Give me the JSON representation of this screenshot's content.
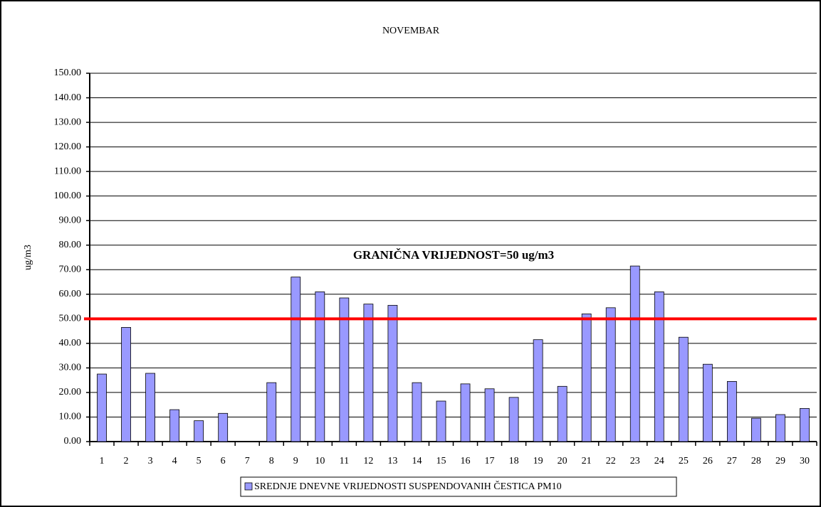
{
  "chart_data": {
    "type": "bar",
    "title": "NOVEMBAR",
    "y_label": "ug/m3",
    "categories": [
      "1",
      "2",
      "3",
      "4",
      "5",
      "6",
      "7",
      "8",
      "9",
      "10",
      "11",
      "12",
      "13",
      "14",
      "15",
      "16",
      "17",
      "18",
      "19",
      "20",
      "21",
      "22",
      "23",
      "24",
      "25",
      "26",
      "27",
      "28",
      "29",
      "30"
    ],
    "series": [
      {
        "name": "SREDNJE DNEVNE VRIJEDNOSTI SUSPENDOVANIH ČESTICA PM10",
        "color": "#9999ff",
        "values": [
          27.5,
          46.5,
          27.8,
          13,
          8.5,
          11.5,
          null,
          24,
          67,
          61,
          58.5,
          56,
          55.5,
          24,
          16.5,
          23.5,
          21.5,
          18,
          41.5,
          22.5,
          52,
          54.5,
          71.5,
          61,
          42.5,
          31.5,
          24.5,
          9.5,
          11,
          13.5
        ]
      }
    ],
    "threshold": 50,
    "threshold_color": "#ff0000",
    "threshold_label": "GRANIČNA VRIJEDNOST=50 ug/m3",
    "ylim": [
      0,
      150
    ],
    "yticks": [
      {
        "value": 0,
        "label": "0.00"
      },
      {
        "value": 10,
        "label": "10.00"
      },
      {
        "value": 20,
        "label": "20.00"
      },
      {
        "value": 30,
        "label": "30.00"
      },
      {
        "value": 40,
        "label": "40.00"
      },
      {
        "value": 50,
        "label": "50.00"
      },
      {
        "value": 60,
        "label": "60.00"
      },
      {
        "value": 70,
        "label": "70.00"
      },
      {
        "value": 80,
        "label": "80.00"
      },
      {
        "value": 90,
        "label": "90.00"
      },
      {
        "value": 100,
        "label": "100.00"
      },
      {
        "value": 110,
        "label": "110.00"
      },
      {
        "value": 120,
        "label": "120.00"
      },
      {
        "value": 130,
        "label": "130.00"
      },
      {
        "value": 140,
        "label": "140.00"
      },
      {
        "value": 150,
        "label": "150.00"
      }
    ],
    "grid": true,
    "legend": "bottom"
  }
}
